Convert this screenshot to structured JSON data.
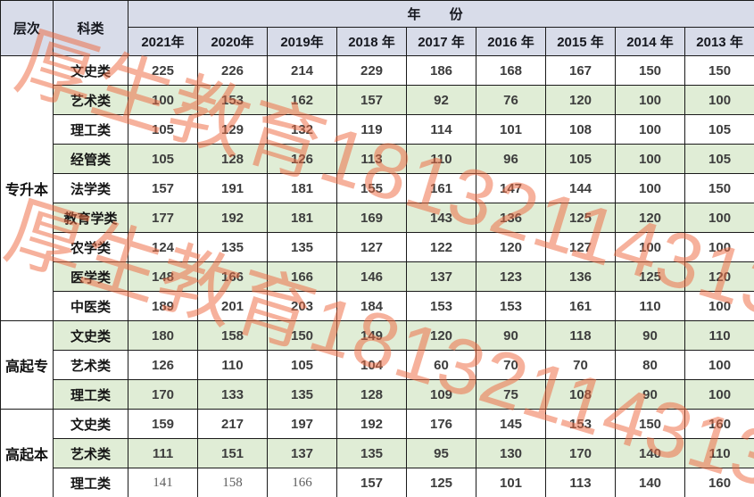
{
  "header": {
    "level_label": "层次",
    "category_label": "科类",
    "year_span_label": "年 份",
    "year_columns": [
      "2021年",
      "2020年",
      "2019年",
      "2018 年",
      "2017 年",
      "2016 年",
      "2015 年",
      "2014 年",
      "2013 年"
    ]
  },
  "sections": [
    {
      "level": "专升本",
      "rows": [
        {
          "category": "文史类",
          "values": [
            "225",
            "226",
            "214",
            "229",
            "186",
            "168",
            "167",
            "150",
            "150"
          ]
        },
        {
          "category": "艺术类",
          "values": [
            "100",
            "153",
            "162",
            "157",
            "92",
            "76",
            "120",
            "100",
            "100"
          ]
        },
        {
          "category": "理工类",
          "values": [
            "105",
            "129",
            "132",
            "119",
            "114",
            "101",
            "108",
            "100",
            "105"
          ]
        },
        {
          "category": "经管类",
          "values": [
            "105",
            "128",
            "126",
            "113",
            "110",
            "96",
            "105",
            "100",
            "105"
          ]
        },
        {
          "category": "法学类",
          "values": [
            "157",
            "191",
            "181",
            "155",
            "161",
            "147",
            "144",
            "100",
            "150"
          ]
        },
        {
          "category": "教育学类",
          "values": [
            "177",
            "192",
            "181",
            "169",
            "143",
            "136",
            "125",
            "120",
            "100"
          ]
        },
        {
          "category": "农学类",
          "values": [
            "124",
            "135",
            "135",
            "127",
            "122",
            "120",
            "127",
            "100",
            "100"
          ]
        },
        {
          "category": "医学类",
          "values": [
            "148",
            "166",
            "166",
            "146",
            "137",
            "123",
            "136",
            "125",
            "120"
          ]
        },
        {
          "category": "中医类",
          "values": [
            "189",
            "201",
            "203",
            "184",
            "153",
            "153",
            "161",
            "110",
            "100"
          ]
        }
      ]
    },
    {
      "level": "高起专",
      "rows": [
        {
          "category": "文史类",
          "values": [
            "180",
            "158",
            "150",
            "149",
            "120",
            "90",
            "118",
            "90",
            "110"
          ]
        },
        {
          "category": "艺术类",
          "values": [
            "126",
            "110",
            "105",
            "104",
            "60",
            "70",
            "70",
            "80",
            "100"
          ]
        },
        {
          "category": "理工类",
          "values": [
            "170",
            "133",
            "135",
            "128",
            "109",
            "75",
            "108",
            "90",
            "100"
          ]
        }
      ]
    },
    {
      "level": "高起本",
      "rows": [
        {
          "category": "文史类",
          "values": [
            "159",
            "217",
            "197",
            "192",
            "176",
            "145",
            "153",
            "150",
            "160"
          ]
        },
        {
          "category": "艺术类",
          "values": [
            "111",
            "151",
            "137",
            "135",
            "95",
            "130",
            "170",
            "140",
            "110"
          ]
        },
        {
          "category": "理工类",
          "values": [
            "141",
            "158",
            "166",
            "157",
            "125",
            "101",
            "113",
            "140",
            "160"
          ]
        }
      ]
    }
  ],
  "watermark": {
    "text": "厚生教育18132114313",
    "color": "#ee6b42"
  },
  "colors": {
    "header_bg": "#d8dce9",
    "row_green": "#e0edd6",
    "row_white": "#ffffff",
    "border": "#1a1a1a",
    "number_text": "#3d3d3d",
    "watermark": "#ee6b42"
  }
}
